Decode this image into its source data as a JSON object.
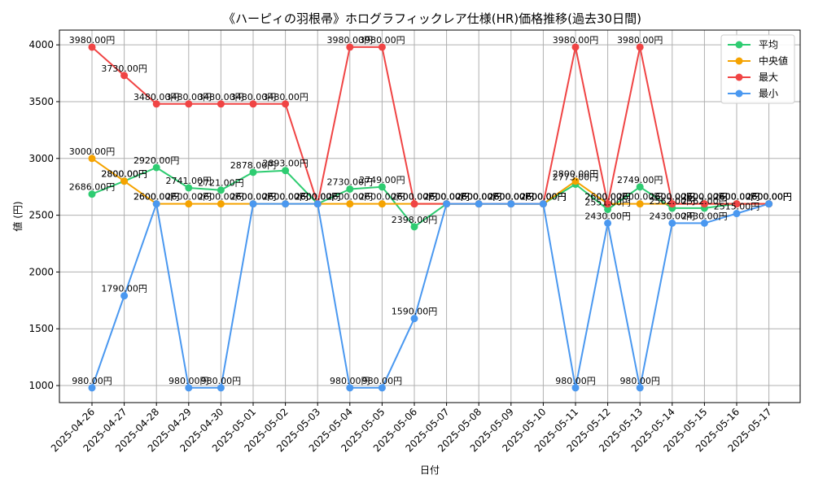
{
  "chart_data": {
    "type": "line",
    "title": "《ハーピィの羽根帚》ホログラフィックレア仕様(HR)価格推移(過去30日間)",
    "xlabel": "日付",
    "ylabel": "値 (円)",
    "ylim": [
      850,
      4130
    ],
    "yticks": [
      1000,
      1500,
      2000,
      2500,
      3000,
      3500,
      4000
    ],
    "grid": true,
    "legend_position": "top-right",
    "value_suffix": "円",
    "categories": [
      "2025-04-26",
      "2025-04-27",
      "2025-04-28",
      "2025-04-29",
      "2025-04-30",
      "2025-05-01",
      "2025-05-02",
      "2025-05-03",
      "2025-05-04",
      "2025-05-05",
      "2025-05-06",
      "2025-05-07",
      "2025-05-08",
      "2025-05-09",
      "2025-05-10",
      "2025-05-11",
      "2025-05-12",
      "2025-05-13",
      "2025-05-14",
      "2025-05-15",
      "2025-05-16",
      "2025-05-17"
    ],
    "series": [
      {
        "name": "平均",
        "color": "#2ecc71",
        "values": [
          2686,
          2800,
          2920,
          2741,
          2721,
          2878,
          2893,
          2600,
          2730,
          2749,
          2398,
          2600,
          2600,
          2600,
          2600,
          2773,
          2551,
          2749,
          2562,
          2562,
          2600,
          2600
        ]
      },
      {
        "name": "中央値",
        "color": "#f5a300",
        "values": [
          3000,
          2800,
          2600,
          2600,
          2600,
          2600,
          2600,
          2600,
          2600,
          2600,
          2600,
          2600,
          2600,
          2600,
          2600,
          2800,
          2600,
          2600,
          2600,
          2600,
          2600,
          2600
        ]
      },
      {
        "name": "最大",
        "color": "#f04444",
        "values": [
          3980,
          3730,
          3480,
          3480,
          3480,
          3480,
          3480,
          2600,
          3980,
          3980,
          2600,
          2600,
          2600,
          2600,
          2600,
          3980,
          2600,
          3980,
          2600,
          2600,
          2600,
          2600
        ]
      },
      {
        "name": "最小",
        "color": "#4a98f0",
        "values": [
          980,
          1790,
          2600,
          980,
          980,
          2600,
          2600,
          2600,
          980,
          980,
          1590,
          2600,
          2600,
          2600,
          2600,
          980,
          2430,
          980,
          2430,
          2430,
          2515,
          2600
        ]
      }
    ]
  }
}
